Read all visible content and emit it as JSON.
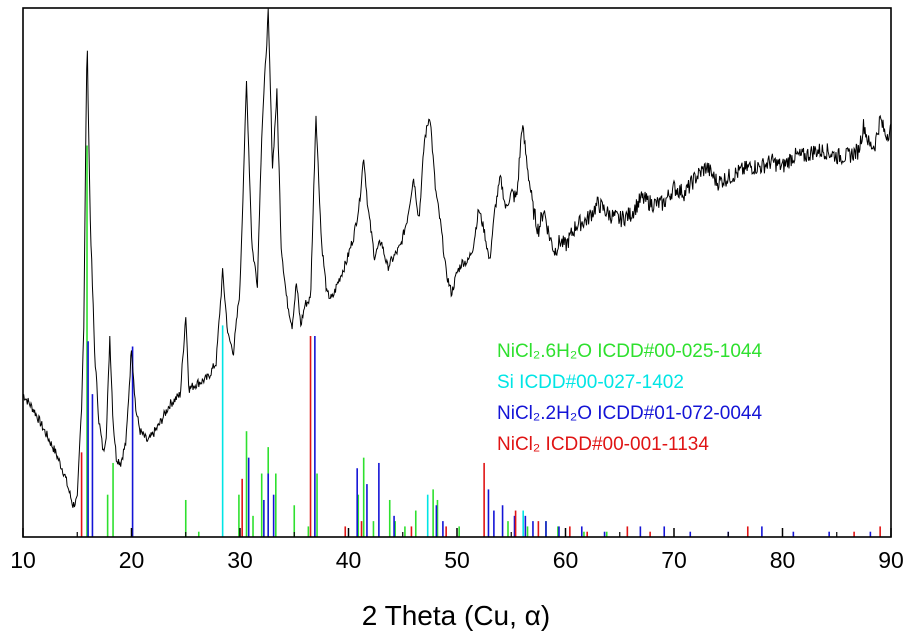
{
  "chart_data": {
    "type": "line",
    "title": "",
    "xlabel": "2 Theta (Cu, α)",
    "ylabel": "",
    "xlim": [
      10,
      90
    ],
    "ylim": [
      0,
      100
    ],
    "xticks": [
      "10",
      "20",
      "30",
      "40",
      "50",
      "60",
      "70",
      "80",
      "90"
    ],
    "grid": false,
    "legend_position": "center-right",
    "series": [
      {
        "type": "line",
        "color": "#000000",
        "x": [
          10,
          11,
          12,
          13,
          13.8,
          14.6,
          15.0,
          15.4,
          15.6,
          15.9,
          16.2,
          16.6,
          17.0,
          17.4,
          17.7,
          18.0,
          18.3,
          18.6,
          19.0,
          19.5,
          20.0,
          20.4,
          20.8,
          21.5,
          22.5,
          23.5,
          24.5,
          25.0,
          25.3,
          26.0,
          27.0,
          27.8,
          28.4,
          28.9,
          29.4,
          30.0,
          30.6,
          31.1,
          31.6,
          32.0,
          32.6,
          33.0,
          33.4,
          33.8,
          34.3,
          34.8,
          35.2,
          35.6,
          36.0,
          36.5,
          37.0,
          37.5,
          38.0,
          38.5,
          39.0,
          39.8,
          40.5,
          41.0,
          41.4,
          41.8,
          42.4,
          43.0,
          43.6,
          44.2,
          44.8,
          45.4,
          46.0,
          46.5,
          47.0,
          47.5,
          48.0,
          48.5,
          49.0,
          49.5,
          50.0,
          50.5,
          51.0,
          51.5,
          52.0,
          52.5,
          53.0,
          53.5,
          54.0,
          54.5,
          55.0,
          55.5,
          56.0,
          56.5,
          57.0,
          57.5,
          58.0,
          58.5,
          59.0,
          59.5,
          60.0,
          61.0,
          62.0,
          63.0,
          64.0,
          65.0,
          66.0,
          67.0,
          68.0,
          69.0,
          70.0,
          71.0,
          72.0,
          73.0,
          74.0,
          75.0,
          76.0,
          77.0,
          78.0,
          79.0,
          80.0,
          81.0,
          82.0,
          83.0,
          84.0,
          85.0,
          86.0,
          87.0,
          87.5,
          88.0,
          88.5,
          89.0,
          89.5,
          90.0
        ],
        "y": [
          27,
          24,
          20,
          16,
          12,
          6,
          7,
          25,
          40,
          95,
          60,
          35,
          22,
          16,
          20,
          38,
          22,
          15,
          14,
          18,
          36,
          24,
          20,
          18,
          21,
          25,
          27,
          42,
          28,
          29,
          30,
          33,
          50,
          38,
          35,
          47,
          86,
          55,
          48,
          76,
          99,
          70,
          84,
          55,
          45,
          40,
          48,
          40,
          44,
          45,
          80,
          56,
          46,
          45,
          48,
          52,
          57,
          63,
          72,
          62,
          53,
          56,
          51,
          53,
          55,
          60,
          68,
          60,
          75,
          80,
          66,
          59,
          50,
          46,
          50,
          52,
          52,
          55,
          62,
          58,
          52,
          62,
          68,
          62,
          65,
          64,
          78,
          70,
          62,
          58,
          62,
          57,
          54,
          56,
          55,
          59,
          60,
          63,
          61,
          60,
          61,
          64,
          63,
          63,
          66,
          65,
          68,
          70,
          67,
          68,
          69,
          70,
          70,
          71,
          70,
          72,
          72,
          73,
          73,
          72,
          72,
          73,
          78,
          74,
          74,
          79,
          76,
          77
        ]
      },
      {
        "name": "NiCl₂.6H₂O  ICDD#00-025-1044",
        "type": "stick",
        "color": "#2ee02e",
        "x": [
          15.9,
          17.8,
          18.3,
          25.0,
          26.2,
          29.9,
          30.6,
          31.2,
          32.0,
          32.6,
          33.3,
          35.0,
          36.3,
          37.1,
          40.9,
          41.4,
          42.3,
          43.8,
          44.3,
          45.2,
          46.2,
          47.8,
          48.2,
          50.2,
          54.7,
          56.5,
          58.2,
          59.3,
          61.7,
          63.8
        ],
        "y": [
          74,
          8,
          14,
          7,
          1,
          8,
          20,
          4,
          12,
          17,
          12,
          6,
          2,
          12,
          8,
          15,
          3,
          7,
          3,
          2,
          5,
          9,
          7,
          2,
          3,
          2,
          3,
          2,
          1,
          1
        ]
      },
      {
        "name": "Si  ICDD#00-027-1402",
        "type": "stick",
        "color": "#00e5e5",
        "x": [
          28.4,
          47.3,
          56.1
        ],
        "y": [
          40,
          8,
          5
        ]
      },
      {
        "name": "NiCl₂.2H₂O  ICDD#01-072-0044",
        "type": "stick",
        "color": "#1414d6",
        "x": [
          16.0,
          16.4,
          20.1,
          30.8,
          32.2,
          32.6,
          33.1,
          36.9,
          40.8,
          41.7,
          42.8,
          44.2,
          48.1,
          48.7,
          52.9,
          53.4,
          54.2,
          55.3,
          56.3,
          57.0,
          58.2,
          59.4,
          61.5,
          63.6,
          66.9,
          69.1,
          71.5,
          75.0,
          78.1,
          81.0,
          84.3,
          88.1
        ],
        "y": [
          37,
          27,
          36,
          15,
          7,
          12,
          8,
          38,
          13,
          10,
          14,
          4,
          6,
          3,
          9,
          5,
          6,
          4,
          4,
          3,
          3,
          2,
          2,
          1,
          2,
          2,
          1,
          1,
          2,
          1,
          1,
          1
        ]
      },
      {
        "name": "NiCl₂  ICDD#00-001-1134",
        "type": "stick",
        "color": "#e01414",
        "x": [
          15.4,
          30.2,
          36.5,
          39.7,
          41.2,
          45.8,
          49.0,
          52.5,
          55.4,
          57.5,
          60.4,
          62.0,
          65.7,
          67.8,
          76.8,
          86.6,
          89.0
        ],
        "y": [
          16,
          11,
          38,
          2,
          3,
          2,
          2,
          14,
          5,
          3,
          2,
          1,
          2,
          1,
          2,
          1,
          2
        ]
      }
    ]
  }
}
